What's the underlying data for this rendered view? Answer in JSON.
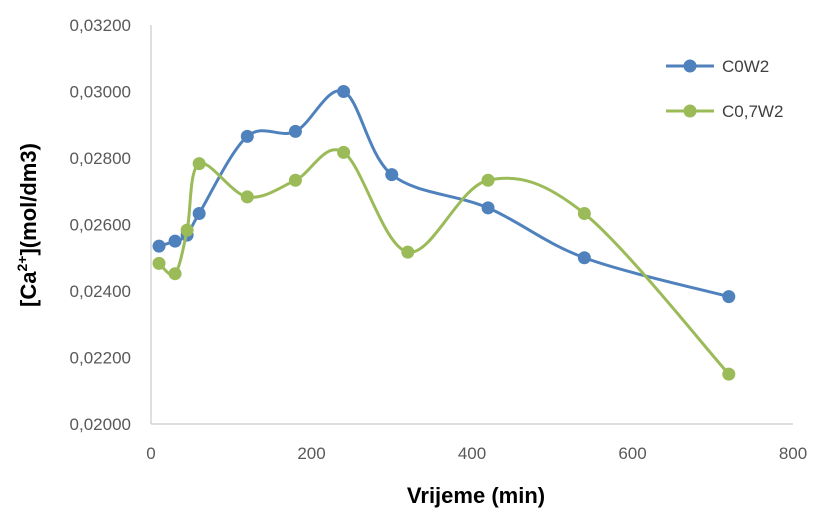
{
  "chart_data": {
    "type": "line",
    "smooth": true,
    "xlabel": "Vrijeme (min)",
    "ylabel_parts": [
      "[Ca",
      "2+",
      "](mol/dm3)"
    ],
    "xlim": [
      0,
      800
    ],
    "ylim": [
      0.02,
      0.032
    ],
    "x_ticks": [
      0,
      200,
      400,
      600,
      800
    ],
    "x_tick_labels": [
      "0",
      "200",
      "400",
      "600",
      "800"
    ],
    "y_ticks": [
      0.02,
      0.022,
      0.024,
      0.026,
      0.028,
      0.03,
      0.032
    ],
    "y_tick_labels": [
      "0,02000",
      "0,02200",
      "0,02400",
      "0,02600",
      "0,02800",
      "0,03000",
      "0,03200"
    ],
    "grid": false,
    "legend_position": "top-right",
    "series": [
      {
        "name": "C0W2",
        "color": "#4f81bd",
        "x": [
          10,
          30,
          45,
          60,
          120,
          180,
          240,
          300,
          420,
          540,
          720
        ],
        "y": [
          0.02535,
          0.0255,
          0.02568,
          0.02633,
          0.02865,
          0.0288,
          0.03,
          0.0275,
          0.0265,
          0.025,
          0.02383
        ]
      },
      {
        "name": "C0,7W2",
        "color": "#9bbb59",
        "x": [
          10,
          30,
          45,
          60,
          120,
          180,
          240,
          320,
          420,
          540,
          720
        ],
        "y": [
          0.02483,
          0.02452,
          0.02583,
          0.02783,
          0.02683,
          0.02733,
          0.02817,
          0.02517,
          0.02733,
          0.02633,
          0.0215
        ]
      }
    ]
  }
}
